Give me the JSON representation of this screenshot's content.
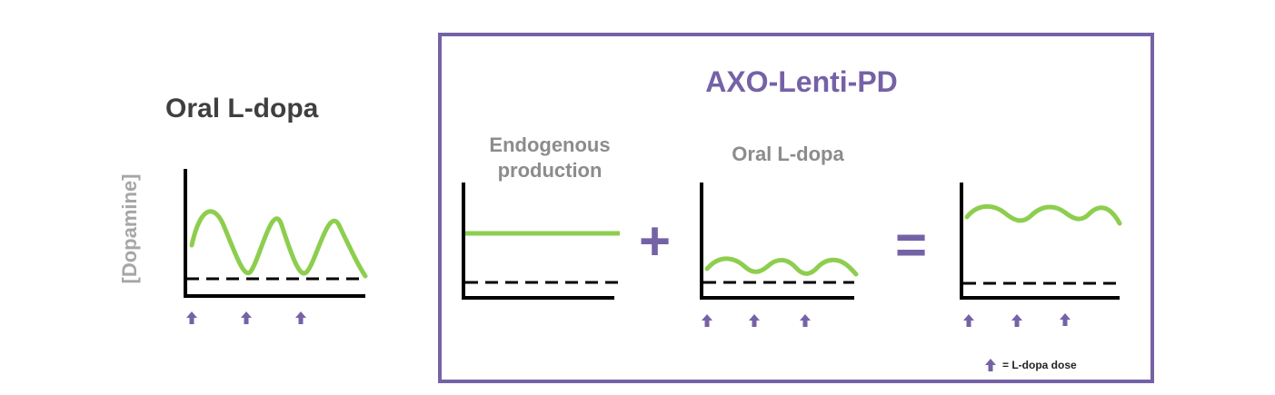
{
  "left_title": "Oral L-dopa",
  "y_axis_label": "[Dopamine]",
  "box_title": "AXO-Lenti-PD",
  "panel1_label_line1": "Endogenous",
  "panel1_label_line2": "production",
  "panel2_label": "Oral L-dopa",
  "plus_symbol": "+",
  "equals_symbol": "=",
  "legend_text": "= L-dopa dose",
  "colors": {
    "curve": "#8dce4e",
    "accent": "#7562a6",
    "axis": "#000000",
    "label_gray": "#8c8c8c"
  }
}
